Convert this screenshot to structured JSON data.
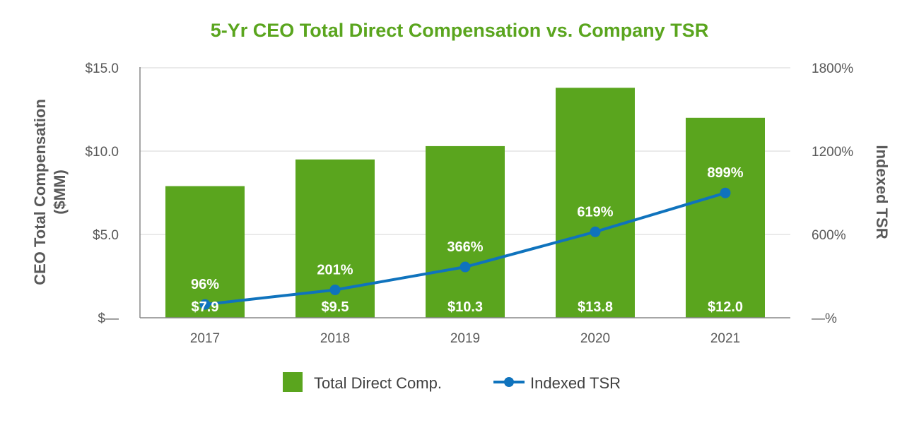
{
  "chart_data": {
    "type": "bar+line",
    "title": "5-Yr CEO Total Direct Compensation vs. Company TSR",
    "categories": [
      "2017",
      "2018",
      "2019",
      "2020",
      "2021"
    ],
    "series": [
      {
        "name": "Total Direct Comp.",
        "type": "bar",
        "axis": "left",
        "values": [
          7.9,
          9.5,
          10.3,
          13.8,
          12.0
        ],
        "labels": [
          "$7.9",
          "$9.5",
          "$10.3",
          "$13.8",
          "$12.0"
        ],
        "color": "#5aa51e"
      },
      {
        "name": "Indexed TSR",
        "type": "line",
        "axis": "right",
        "values": [
          96,
          201,
          366,
          619,
          899
        ],
        "labels": [
          "96%",
          "201%",
          "366%",
          "619%",
          "899%"
        ],
        "color": "#0f73bd"
      }
    ],
    "ylabel_left": "CEO Total Compensation ($MM)",
    "ylabel_right": "Indexed TSR",
    "ylim_left": [
      0,
      15
    ],
    "ylim_right": [
      0,
      1800
    ],
    "yticks_left": [
      "$—",
      "$5.0",
      "$10.0",
      "$15.0"
    ],
    "yticks_right": [
      "—%",
      "600%",
      "1200%",
      "1800%"
    ],
    "grid": true,
    "legend": "bottom",
    "title_color": "#5aa51e"
  }
}
